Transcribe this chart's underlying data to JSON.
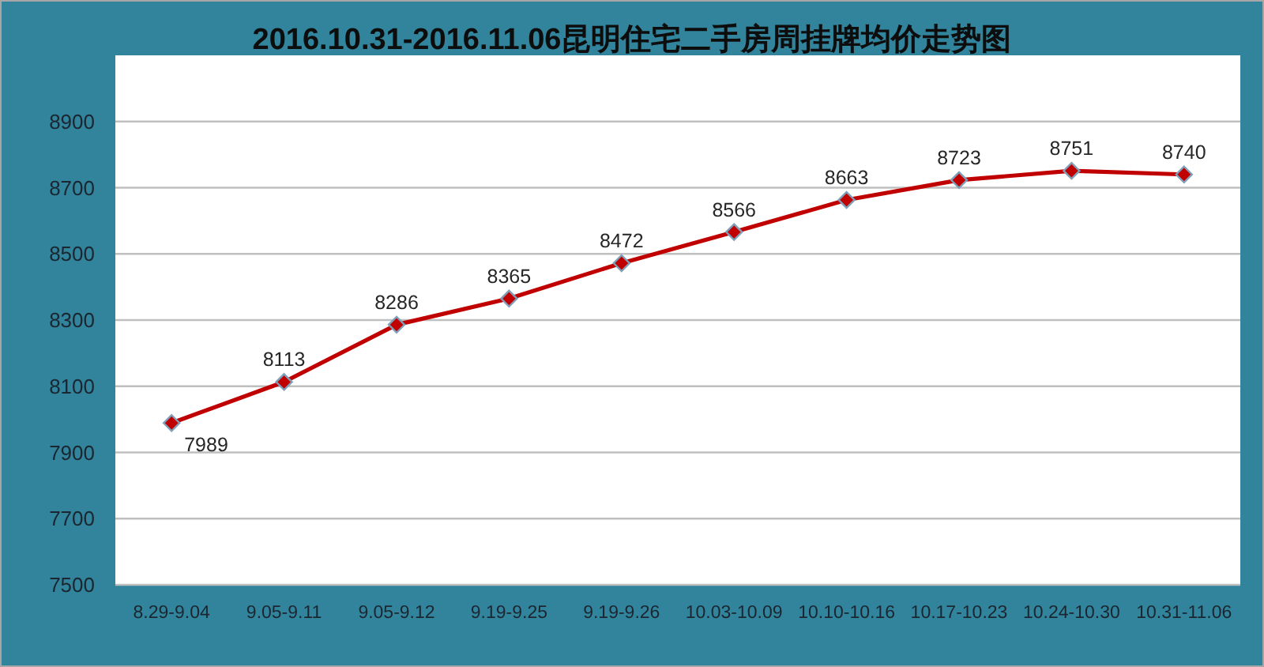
{
  "chart_data": {
    "type": "line",
    "title": "2016.10.31-2016.11.06昆明住宅二手房周挂牌均价走势图",
    "categories": [
      "8.29-9.04",
      "9.05-9.11",
      "9.05-9.12",
      "9.19-9.25",
      "9.19-9.26",
      "10.03-10.09",
      "10.10-10.16",
      "10.17-10.23",
      "10.24-10.30",
      "10.31-11.06"
    ],
    "values": [
      7989,
      8113,
      8286,
      8365,
      8472,
      8566,
      8663,
      8723,
      8751,
      8740
    ],
    "color": "#c00000",
    "marker": "diamond",
    "data_labels": true,
    "grid": "y",
    "ylim": [
      7500,
      9100
    ],
    "yticks": [
      7500,
      7700,
      7900,
      8100,
      8300,
      8500,
      8700,
      8900
    ]
  }
}
